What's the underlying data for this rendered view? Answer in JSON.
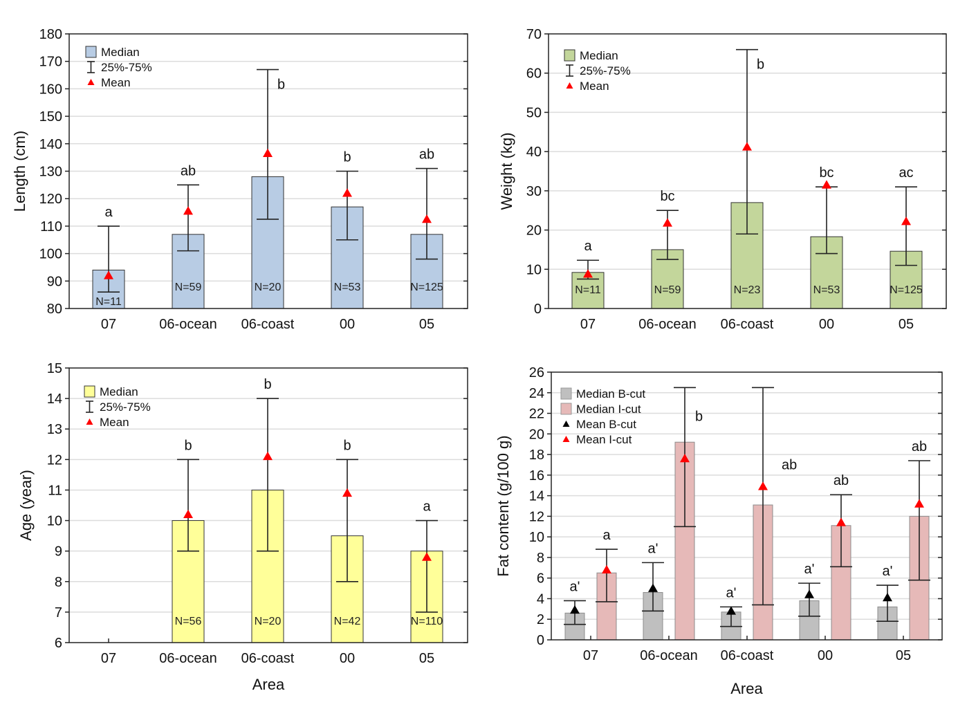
{
  "chart_data": [
    {
      "id": "length",
      "type": "bar",
      "ylabel": "Length (cm)",
      "xlabel": "",
      "ylim": [
        80,
        180
      ],
      "yticks": [
        80,
        90,
        100,
        110,
        120,
        130,
        140,
        150,
        160,
        170,
        180
      ],
      "grid": true,
      "legend_position": "top-left",
      "legend": [
        "Median",
        "25%-75%",
        "Mean"
      ],
      "bar_color": "#b8cce4",
      "categories": [
        "07",
        "06-ocean",
        "06-coast",
        "00",
        "05"
      ],
      "series": [
        {
          "name": "Median",
          "median": [
            94,
            107,
            128,
            117,
            107
          ],
          "q25": [
            86,
            101,
            112.5,
            105,
            98
          ],
          "q75": [
            110,
            125,
            167,
            130,
            131
          ],
          "mean": [
            92,
            115.5,
            136.5,
            122,
            112.5
          ],
          "n": [
            "N=11",
            "N=59",
            "N=20",
            "N=53",
            "N=125"
          ],
          "letters": [
            "a",
            "ab",
            "b",
            "b",
            "ab"
          ]
        }
      ]
    },
    {
      "id": "weight",
      "type": "bar",
      "ylabel": "Weight (kg)",
      "xlabel": "",
      "ylim": [
        0,
        70
      ],
      "yticks": [
        0,
        10,
        20,
        30,
        40,
        50,
        60,
        70
      ],
      "grid": true,
      "legend_position": "top-left",
      "legend": [
        "Median",
        "25%-75%",
        "Mean"
      ],
      "bar_color": "#c3d69b",
      "categories": [
        "07",
        "06-ocean",
        "06-coast",
        "00",
        "05"
      ],
      "series": [
        {
          "name": "Median",
          "median": [
            9.2,
            15,
            27,
            18.3,
            14.6
          ],
          "q25": [
            7.5,
            12.5,
            19,
            14,
            11
          ],
          "q75": [
            12.3,
            25,
            66,
            31,
            31
          ],
          "mean": [
            8.8,
            21.8,
            41.2,
            31.5,
            22.2
          ],
          "n": [
            "N=11",
            "N=59",
            "N=23",
            "N=53",
            "N=125"
          ],
          "letters": [
            "a",
            "bc",
            "b",
            "bc",
            "ac"
          ]
        }
      ]
    },
    {
      "id": "age",
      "type": "bar",
      "ylabel": "Age (year)",
      "xlabel": "Area",
      "ylim": [
        6,
        15
      ],
      "yticks": [
        6,
        7,
        8,
        9,
        10,
        11,
        12,
        13,
        14,
        15
      ],
      "grid": true,
      "legend_position": "top-left",
      "legend": [
        "Median",
        "25%-75%",
        "Mean"
      ],
      "bar_color": "#ffff99",
      "categories": [
        "07",
        "06-ocean",
        "06-coast",
        "00",
        "05"
      ],
      "series": [
        {
          "name": "Median",
          "median": [
            null,
            10,
            11,
            9.5,
            9
          ],
          "q25": [
            null,
            9,
            9,
            8,
            7
          ],
          "q75": [
            null,
            12,
            14,
            12,
            10
          ],
          "mean": [
            null,
            10.2,
            12.1,
            10.9,
            8.8
          ],
          "n": [
            "",
            "N=56",
            "N=20",
            "N=42",
            "N=110"
          ],
          "letters": [
            "",
            "b",
            "b",
            "b",
            "a"
          ]
        }
      ]
    },
    {
      "id": "fat",
      "type": "bar",
      "ylabel": "Fat content (g/100 g)",
      "xlabel": "Area",
      "ylim": [
        0,
        26
      ],
      "yticks": [
        0,
        2,
        4,
        6,
        8,
        10,
        12,
        14,
        16,
        18,
        20,
        22,
        24,
        26
      ],
      "grid": true,
      "legend_position": "top-left",
      "legend": [
        "Median B-cut",
        "Median I-cut",
        "Mean B-cut",
        "Mean I-cut"
      ],
      "categories": [
        "07",
        "06-ocean",
        "06-coast",
        "00",
        "05"
      ],
      "series": [
        {
          "name": "B-cut",
          "color": "#bfbfbf",
          "mean_color": "#000000",
          "median": [
            2.6,
            4.6,
            2.7,
            3.8,
            3.2
          ],
          "q25": [
            1.5,
            2.8,
            1.3,
            2.3,
            1.8
          ],
          "q75": [
            3.8,
            7.5,
            3.2,
            5.5,
            5.3
          ],
          "mean": [
            2.9,
            5.0,
            2.8,
            4.4,
            4.1
          ],
          "letters": [
            "a'",
            "a'",
            "a'",
            "a'",
            "a'"
          ]
        },
        {
          "name": "I-cut",
          "color": "#e6b9b8",
          "mean_color": "#ff0000",
          "median": [
            6.5,
            19.2,
            13.1,
            11.1,
            12.0
          ],
          "q25": [
            3.7,
            11.0,
            3.4,
            7.1,
            5.8
          ],
          "q75": [
            8.8,
            24.5,
            24.5,
            14.1,
            17.4
          ],
          "mean": [
            6.8,
            17.6,
            14.9,
            11.4,
            13.2
          ],
          "letters": [
            "a",
            "b",
            "ab",
            "ab",
            "ab"
          ]
        }
      ]
    }
  ]
}
